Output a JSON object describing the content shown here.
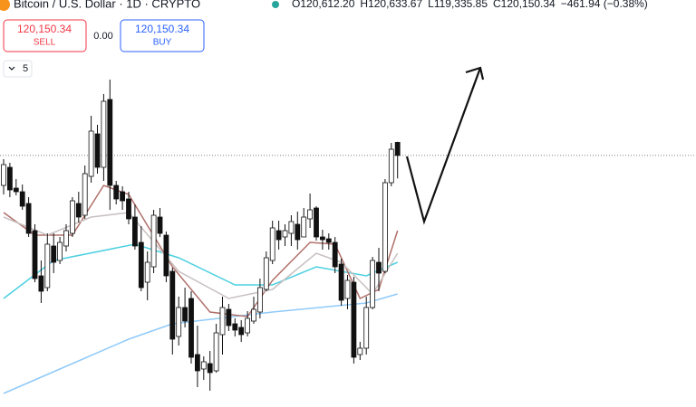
{
  "header": {
    "symbol": "Bitcoin / U.S. Dollar · 1D · CRYPTO",
    "ohlc": [
      {
        "label": "O",
        "value": "120,612.20"
      },
      {
        "label": "H",
        "value": "120,633.67"
      },
      {
        "label": "L",
        "value": "119,335.85"
      },
      {
        "label": "C",
        "value": "120,150.34"
      }
    ],
    "change": "−461.94 (−0.38%)"
  },
  "trade": {
    "sell": {
      "price": "120,150.34",
      "label": "SELL"
    },
    "spread": "0.00",
    "buy": {
      "price": "120,150.34",
      "label": "BUY"
    }
  },
  "indicators": {
    "count": "5"
  },
  "chart_data": {
    "type": "candlestick",
    "ylim": [
      111250,
      125650
    ],
    "price_line": 120150.34,
    "up_color": "#ffffff",
    "down_color": "#111111",
    "open": [
      119090,
      119730,
      118994,
      118866,
      118450,
      117490,
      115890,
      115474,
      116946,
      116434,
      116946,
      117394,
      118450,
      118034,
      119410,
      120914,
      119730,
      122130,
      119090,
      118866,
      118610,
      117970,
      117074,
      115666,
      116210,
      117970,
      117330,
      116050,
      113746,
      114770,
      115090,
      113106,
      112594,
      112786,
      112530,
      113810,
      114706,
      114194,
      114066,
      113874,
      114290,
      114610,
      115410,
      116434,
      117490,
      117266,
      117394,
      117714,
      117266,
      117906,
      118290,
      117266,
      117202,
      117074,
      116306,
      115090,
      115666,
      113106,
      113330,
      114770,
      116370,
      116050,
      119186,
      120612.2
    ],
    "high": [
      120018,
      119890,
      119314,
      119122,
      118674,
      117714,
      116434,
      117394,
      117394,
      117266,
      117714,
      118674,
      118866,
      119794,
      121554,
      121234,
      122322,
      122834,
      119250,
      119058,
      118866,
      118418,
      117650,
      116754,
      118226,
      118290,
      117458,
      116178,
      115154,
      115474,
      115346,
      114130,
      113042,
      113234,
      114194,
      115154,
      114898,
      114386,
      114322,
      114642,
      115154,
      115794,
      116754,
      117842,
      117842,
      117714,
      118034,
      118162,
      118290,
      118802,
      118354,
      117522,
      117394,
      117266,
      116498,
      115922,
      115858,
      113554,
      115154,
      116562,
      116882,
      119314,
      120594,
      120633.67
    ],
    "low": [
      118770,
      118674,
      118738,
      118226,
      117266,
      115666,
      114930,
      115346,
      115986,
      116306,
      116754,
      117266,
      117778,
      117906,
      119186,
      119506,
      119250,
      118226,
      118418,
      118226,
      117714,
      116818,
      115346,
      115026,
      115986,
      117266,
      115666,
      113106,
      113426,
      114066,
      112786,
      111954,
      112210,
      111826,
      112466,
      113106,
      113938,
      113746,
      113554,
      113746,
      114194,
      114386,
      115346,
      116306,
      116818,
      116946,
      116946,
      116818,
      117266,
      117586,
      117138,
      116818,
      116818,
      115986,
      114834,
      114706,
      112786,
      112914,
      113106,
      114706,
      115346,
      115986,
      119058,
      119335.85
    ],
    "close": [
      119826,
      118930,
      118866,
      118354,
      117394,
      115794,
      115346,
      117010,
      116370,
      117074,
      117490,
      118546,
      117970,
      119506,
      121010,
      119730,
      122066,
      119090,
      118610,
      118546,
      117906,
      116946,
      115474,
      116370,
      118034,
      117394,
      115890,
      113650,
      114770,
      114290,
      113010,
      112530,
      112850,
      112466,
      113874,
      114770,
      114130,
      113970,
      113810,
      114386,
      114706,
      115474,
      116530,
      117586,
      117170,
      117490,
      117810,
      117170,
      117970,
      118226,
      117266,
      117170,
      117074,
      116210,
      115026,
      115730,
      113010,
      113330,
      114770,
      116434,
      115986,
      119186,
      120370,
      120150.34
    ],
    "series": [
      {
        "color": "#4dd0e1",
        "x": [
          0,
          8,
          21,
          28,
          37,
          43,
          50,
          58,
          63
        ],
        "values": [
          115090,
          116434,
          117010,
          116530,
          115570,
          115570,
          116210,
          115890,
          116370
        ]
      },
      {
        "color": "#90caf9",
        "x": [
          0,
          10,
          20,
          27,
          43,
          58,
          63
        ],
        "values": [
          111730,
          112690,
          113650,
          114194,
          114610,
          114930,
          115250
        ]
      },
      {
        "color": "#b0706a",
        "x": [
          0,
          5,
          11,
          16,
          20,
          27,
          33,
          39,
          43,
          49,
          53,
          57,
          60,
          63
        ],
        "values": [
          118130,
          117330,
          117330,
          119090,
          118770,
          116210,
          114610,
          114450,
          115730,
          117074,
          117010,
          115090,
          115410,
          117490
        ]
      },
      {
        "color": "#c8c0c0",
        "x": [
          0,
          7,
          14,
          20,
          28,
          36,
          43,
          50,
          54,
          59,
          63
        ],
        "values": [
          117970,
          117330,
          117970,
          118130,
          116050,
          115090,
          115410,
          116690,
          116370,
          115250,
          116690
        ]
      }
    ]
  }
}
